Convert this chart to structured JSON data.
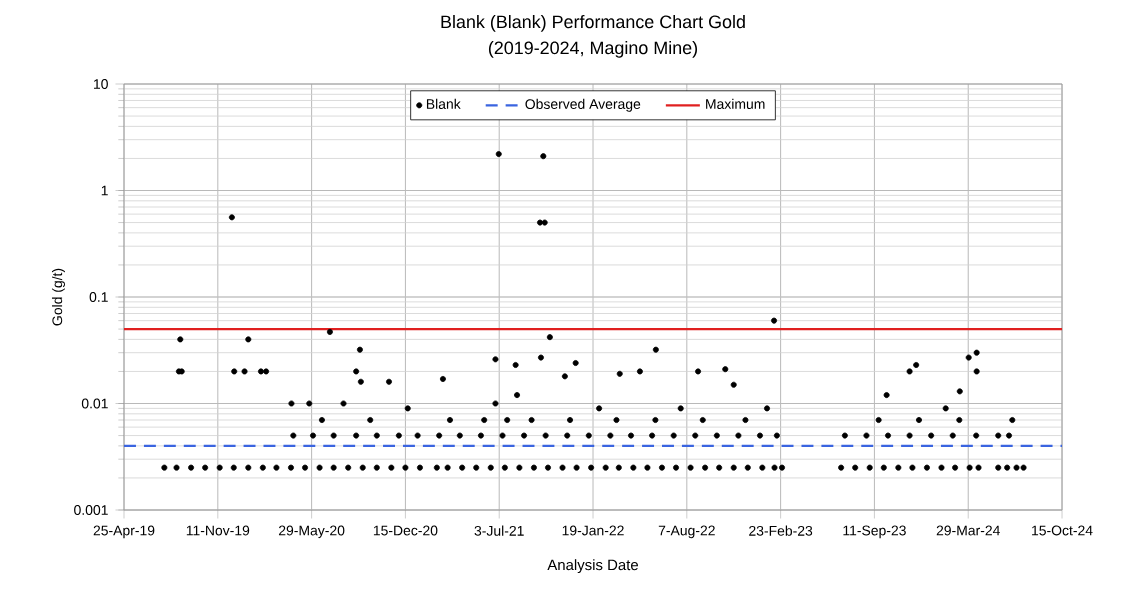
{
  "chart_data": {
    "type": "scatter",
    "title": "Blank (Blank) Performance Chart Gold",
    "subtitle": "(2019-2024, Magino Mine)",
    "xlabel": "Analysis Date",
    "ylabel": "Gold (g/t)",
    "log": "y",
    "grid": true,
    "legend": "top",
    "marker": "circle",
    "xlim": [
      "2019-04-25",
      "2024-10-15"
    ],
    "xticks": [
      {
        "value": "2019-04-25",
        "label": "25-Apr-19"
      },
      {
        "value": "2019-11-11",
        "label": "11-Nov-19"
      },
      {
        "value": "2020-05-29",
        "label": "29-May-20"
      },
      {
        "value": "2020-12-15",
        "label": "15-Dec-20"
      },
      {
        "value": "2021-07-03",
        "label": "3-Jul-21"
      },
      {
        "value": "2022-01-19",
        "label": "19-Jan-22"
      },
      {
        "value": "2022-08-07",
        "label": "7-Aug-22"
      },
      {
        "value": "2023-02-23",
        "label": "23-Feb-23"
      },
      {
        "value": "2023-09-11",
        "label": "11-Sep-23"
      },
      {
        "value": "2024-03-29",
        "label": "29-Mar-24"
      },
      {
        "value": "2024-10-15",
        "label": "15-Oct-24"
      }
    ],
    "ylim": [
      0.001,
      10
    ],
    "yticks": [
      0.001,
      0.01,
      0.1,
      1,
      10
    ],
    "series": [
      {
        "name": "Blank",
        "color": "#000000",
        "x": [
          "2019-07-20",
          "2019-08-15",
          "2019-09-15",
          "2019-10-15",
          "2019-11-15",
          "2019-12-15",
          "2020-01-15",
          "2020-02-15",
          "2020-03-15",
          "2020-04-15",
          "2020-05-15",
          "2020-06-15",
          "2020-07-15",
          "2020-08-15",
          "2020-09-15",
          "2020-10-15",
          "2020-11-15",
          "2020-12-15",
          "2021-01-15",
          "2021-02-20",
          "2021-03-15",
          "2021-04-15",
          "2021-05-15",
          "2021-06-15",
          "2021-07-15",
          "2021-08-15",
          "2021-09-15",
          "2021-10-15",
          "2021-11-15",
          "2021-12-15",
          "2022-01-15",
          "2022-02-15",
          "2022-03-15",
          "2022-04-15",
          "2022-05-15",
          "2022-06-15",
          "2022-07-15",
          "2022-08-15",
          "2022-09-15",
          "2022-10-15",
          "2022-11-15",
          "2022-12-15",
          "2023-01-15",
          "2023-02-10",
          "2023-02-26",
          "2023-07-02",
          "2023-08-01",
          "2023-09-01",
          "2023-10-01",
          "2023-11-01",
          "2023-12-01",
          "2024-01-01",
          "2024-02-01",
          "2024-03-01",
          "2024-04-01",
          "2024-04-20",
          "2024-06-01",
          "2024-06-20",
          "2024-07-10",
          "2024-07-25",
          "2020-04-20",
          "2020-06-01",
          "2020-07-15",
          "2020-09-01",
          "2020-10-15",
          "2020-12-01",
          "2021-01-10",
          "2021-02-25",
          "2021-04-10",
          "2021-05-25",
          "2021-07-10",
          "2021-08-25",
          "2021-10-10",
          "2021-11-25",
          "2022-01-10",
          "2022-02-25",
          "2022-04-10",
          "2022-05-25",
          "2022-07-10",
          "2022-08-25",
          "2022-10-10",
          "2022-11-25",
          "2023-01-10",
          "2023-02-15",
          "2023-07-10",
          "2023-08-25",
          "2023-10-10",
          "2023-11-25",
          "2024-01-10",
          "2024-02-25",
          "2024-04-15",
          "2020-06-20",
          "2020-10-01",
          "2021-03-20",
          "2021-06-01",
          "2021-07-20",
          "2021-09-10",
          "2021-12-01",
          "2022-03-10",
          "2022-06-01",
          "2022-09-10",
          "2022-12-10",
          "2023-09-20",
          "2023-12-15",
          "2024-03-10",
          "2020-08-05",
          "2020-12-20",
          "2021-06-25",
          "2021-08-10",
          "2022-02-01",
          "2022-07-25",
          "2023-01-25",
          "2024-02-10",
          "2019-08-23",
          "2019-08-20",
          "2019-08-26",
          "2019-12-11",
          "2019-12-16",
          "2020-01-07",
          "2020-01-15",
          "2020-02-11",
          "2020-02-22",
          "2020-04-16",
          "2020-05-24",
          "2020-07-07",
          "2020-09-01",
          "2020-09-09",
          "2020-09-11",
          "2020-11-10",
          "2021-03-05",
          "2021-06-25",
          "2021-07-02",
          "2021-08-07",
          "2021-09-28",
          "2021-09-30",
          "2021-10-05",
          "2021-10-08",
          "2021-10-19",
          "2021-11-20",
          "2021-12-13",
          "2022-03-17",
          "2022-04-29",
          "2022-06-02",
          "2022-08-31",
          "2022-10-28",
          "2022-11-15",
          "2023-02-09",
          "2023-10-07",
          "2023-11-25",
          "2023-12-09",
          "2024-03-11",
          "2024-03-30",
          "2024-04-16",
          "2024-04-16",
          "2024-06-01",
          "2024-06-24",
          "2024-07-01"
        ],
        "values": [
          0.0025,
          0.0025,
          0.0025,
          0.0025,
          0.0025,
          0.0025,
          0.0025,
          0.0025,
          0.0025,
          0.0025,
          0.0025,
          0.0025,
          0.0025,
          0.0025,
          0.0025,
          0.0025,
          0.0025,
          0.0025,
          0.0025,
          0.0025,
          0.0025,
          0.0025,
          0.0025,
          0.0025,
          0.0025,
          0.0025,
          0.0025,
          0.0025,
          0.0025,
          0.0025,
          0.0025,
          0.0025,
          0.0025,
          0.0025,
          0.0025,
          0.0025,
          0.0025,
          0.0025,
          0.0025,
          0.0025,
          0.0025,
          0.0025,
          0.0025,
          0.0025,
          0.0025,
          0.0025,
          0.0025,
          0.0025,
          0.0025,
          0.0025,
          0.0025,
          0.0025,
          0.0025,
          0.0025,
          0.0025,
          0.0025,
          0.0025,
          0.0025,
          0.0025,
          0.0025,
          0.005,
          0.005,
          0.005,
          0.005,
          0.005,
          0.005,
          0.005,
          0.005,
          0.005,
          0.005,
          0.005,
          0.005,
          0.005,
          0.005,
          0.005,
          0.005,
          0.005,
          0.005,
          0.005,
          0.005,
          0.005,
          0.005,
          0.005,
          0.005,
          0.005,
          0.005,
          0.005,
          0.005,
          0.005,
          0.005,
          0.005,
          0.007,
          0.007,
          0.007,
          0.007,
          0.007,
          0.007,
          0.007,
          0.007,
          0.007,
          0.007,
          0.007,
          0.007,
          0.007,
          0.007,
          0.01,
          0.009,
          0.01,
          0.012,
          0.009,
          0.009,
          0.009,
          0.009,
          0.04,
          0.02,
          0.02,
          0.56,
          0.02,
          0.02,
          0.04,
          0.02,
          0.02,
          0.01,
          0.01,
          0.047,
          0.02,
          0.032,
          0.016,
          0.016,
          0.017,
          0.026,
          2.2,
          0.023,
          0.5,
          0.027,
          2.1,
          0.5,
          0.042,
          0.018,
          0.024,
          0.019,
          0.02,
          0.032,
          0.02,
          0.021,
          0.015,
          0.06,
          0.012,
          0.02,
          0.023,
          0.013,
          0.027,
          0.03,
          0.02,
          0.005,
          0.005,
          0.007
        ]
      }
    ],
    "ref_lines": [
      {
        "axis": "y",
        "value": 0.004,
        "label": "Observed Average",
        "color": "#3a64e0",
        "line_style": "dashed"
      },
      {
        "axis": "y",
        "value": 0.05,
        "label": "Maximum",
        "color": "#e02020",
        "line_style": "solid"
      }
    ]
  }
}
